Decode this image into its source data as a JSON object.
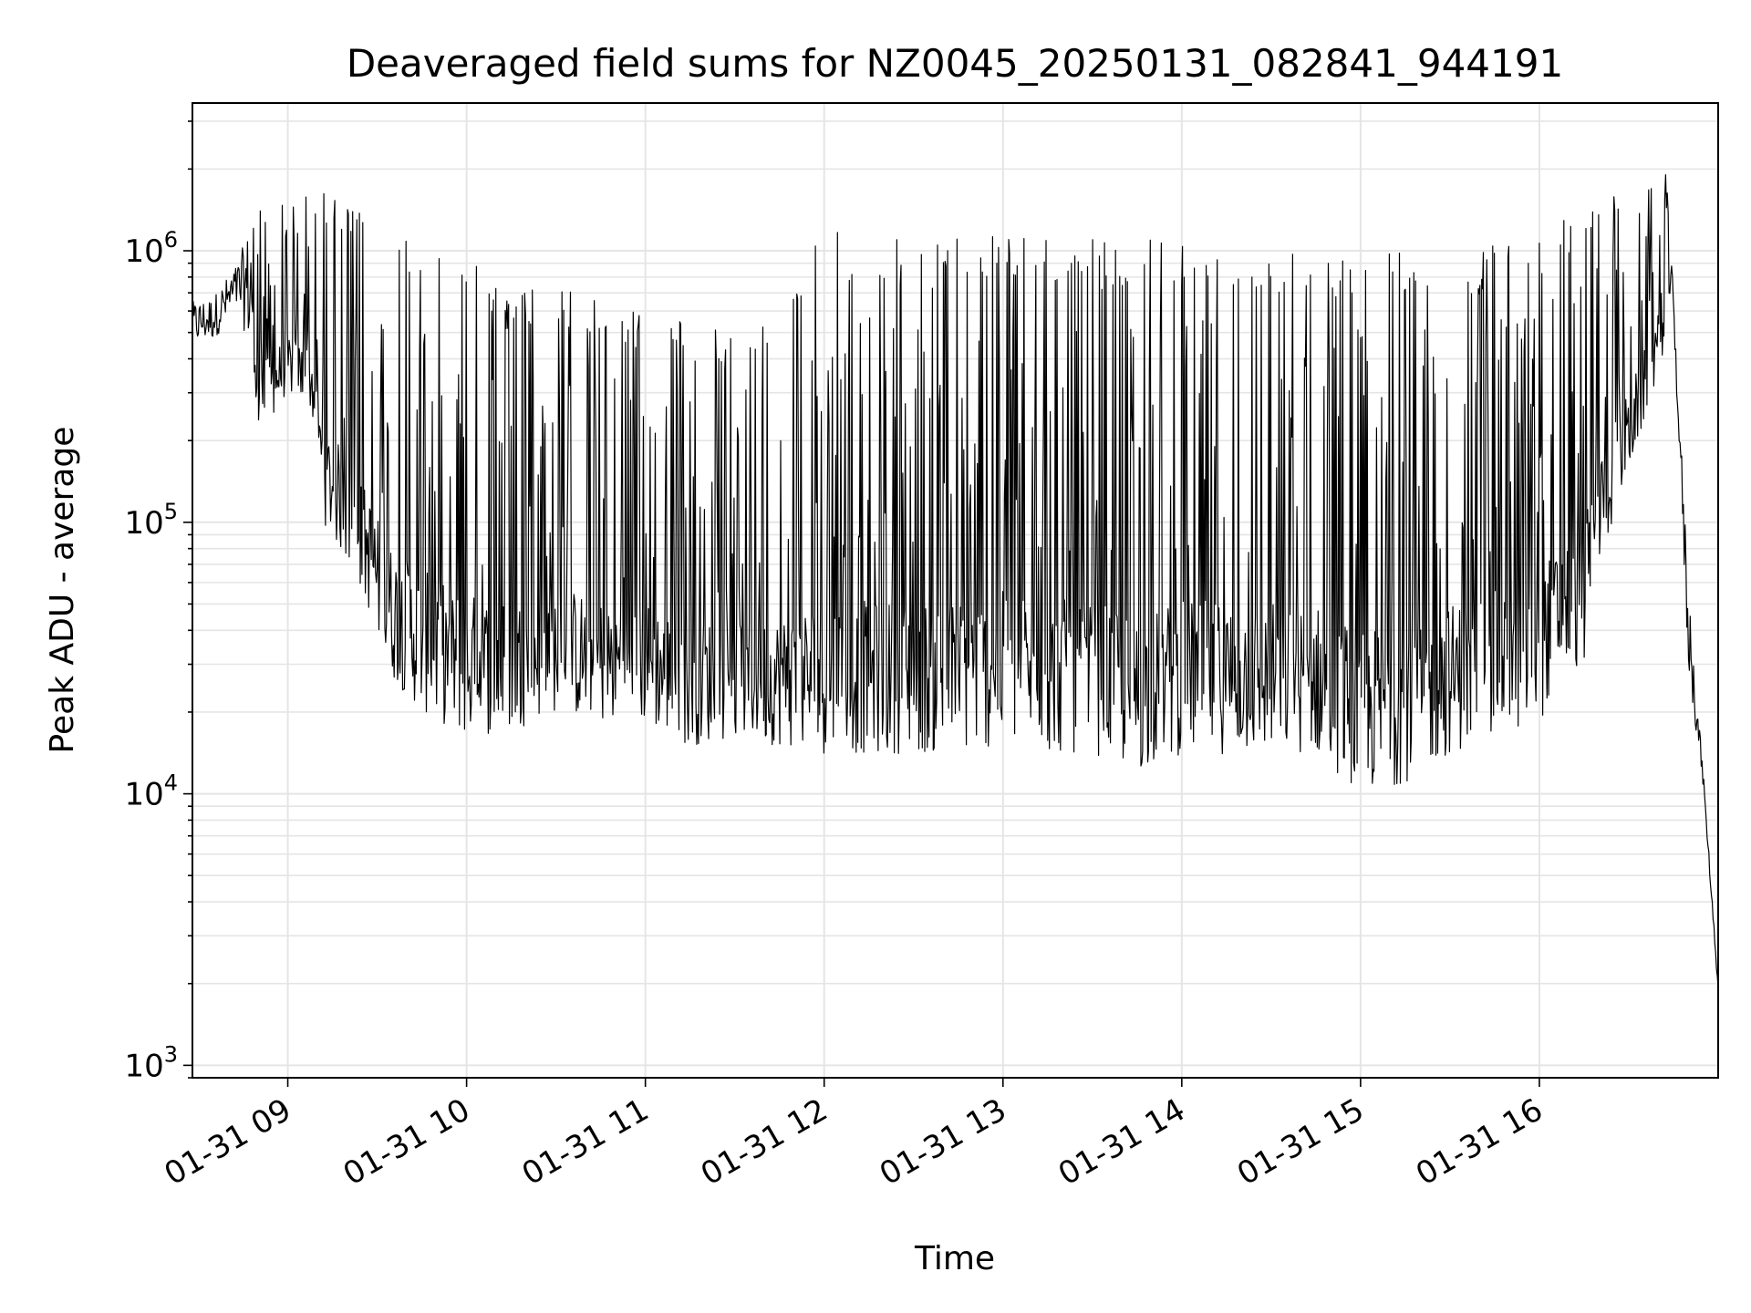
{
  "chart_data": {
    "type": "line",
    "title": "Deaveraged field sums for NZ0045_20250131_082841_944191",
    "xlabel": "Time",
    "ylabel": "Peak ADU - average",
    "yscale": "log",
    "xlim": [
      "2025-01-31 08:28",
      "2025-01-31 17:00"
    ],
    "ylim": [
      900,
      3500000
    ],
    "grid": true,
    "line_color": "#000000",
    "grid_color": "#e5e5e5",
    "x_ticks": [
      "01-31 09",
      "01-31 10",
      "01-31 11",
      "01-31 12",
      "01-31 13",
      "01-31 14",
      "01-31 15",
      "01-31 16"
    ],
    "y_ticks": [
      {
        "value": 1000,
        "base": "10",
        "exp": "3"
      },
      {
        "value": 10000,
        "base": "10",
        "exp": "4"
      },
      {
        "value": 100000,
        "base": "10",
        "exp": "5"
      },
      {
        "value": 1000000,
        "base": "10",
        "exp": "6"
      }
    ],
    "series": [
      {
        "x": [
          "2025-01-31 08:28",
          "2025-01-31 08:35",
          "2025-01-31 08:43",
          "2025-01-31 08:48",
          "2025-01-31 08:52",
          "2025-01-31 09:00",
          "2025-01-31 09:08",
          "2025-01-31 09:12",
          "2025-01-31 09:20",
          "2025-01-31 09:28",
          "2025-01-31 09:33",
          "2025-01-31 09:45",
          "2025-01-31 10:00",
          "2025-01-31 10:15",
          "2025-01-31 10:30",
          "2025-01-31 10:45",
          "2025-01-31 11:00",
          "2025-01-31 11:15",
          "2025-01-31 11:30",
          "2025-01-31 11:45",
          "2025-01-31 12:00",
          "2025-01-31 12:15",
          "2025-01-31 12:30",
          "2025-01-31 12:45",
          "2025-01-31 13:00",
          "2025-01-31 13:15",
          "2025-01-31 13:30",
          "2025-01-31 13:45",
          "2025-01-31 14:00",
          "2025-01-31 14:15",
          "2025-01-31 14:30",
          "2025-01-31 14:45",
          "2025-01-31 15:00",
          "2025-01-31 15:15",
          "2025-01-31 15:30",
          "2025-01-31 15:45",
          "2025-01-31 16:00",
          "2025-01-31 16:05",
          "2025-01-31 16:15",
          "2025-01-31 16:20",
          "2025-01-31 16:30",
          "2025-01-31 16:38",
          "2025-01-31 16:42",
          "2025-01-31 16:45",
          "2025-01-31 16:50",
          "2025-01-31 16:55",
          "2025-01-31 17:00"
        ],
        "low": [
          380000,
          400000,
          500000,
          260000,
          220000,
          300000,
          250000,
          100000,
          70000,
          45000,
          28000,
          20000,
          16000,
          17000,
          20000,
          18000,
          18000,
          15000,
          16000,
          15000,
          14000,
          14000,
          14000,
          14000,
          15000,
          14000,
          14000,
          12000,
          14000,
          14000,
          14000,
          14000,
          10000,
          11000,
          14000,
          16000,
          18000,
          25000,
          30000,
          70000,
          150000,
          300000,
          400000,
          500000,
          20000,
          10000,
          1800
        ],
        "high": [
          650000,
          680000,
          900000,
          1300000,
          1500000,
          1600000,
          1700000,
          1700000,
          1500000,
          1300000,
          1200000,
          1100000,
          1000000,
          700000,
          750000,
          650000,
          600000,
          550000,
          500000,
          600000,
          1200000,
          1100000,
          1100000,
          1150000,
          1200000,
          1150000,
          1100000,
          1100000,
          1100000,
          1100000,
          1050000,
          1000000,
          1050000,
          1000000,
          1000000,
          1050000,
          1200000,
          1300000,
          1500000,
          1600000,
          1600000,
          1800000,
          2400000,
          700000,
          60000,
          12000,
          2000
        ]
      }
    ]
  }
}
